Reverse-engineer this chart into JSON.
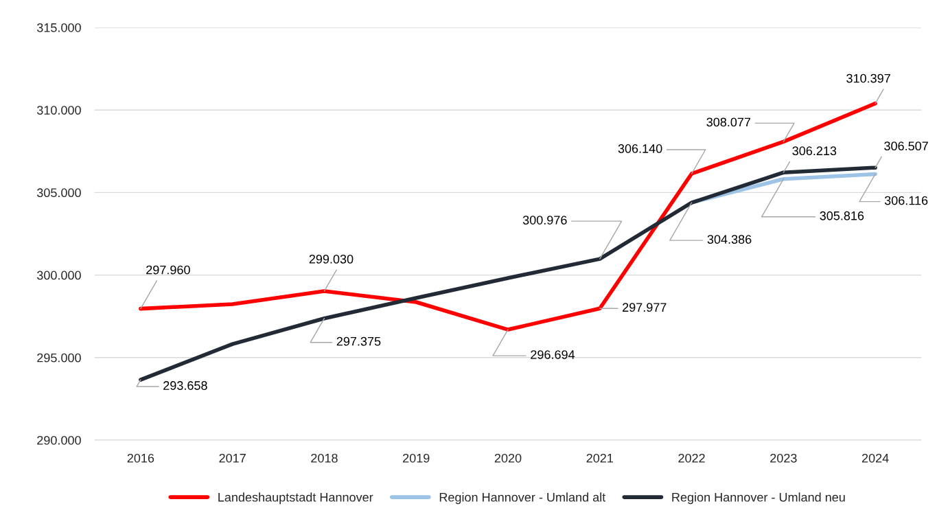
{
  "chart_data": {
    "type": "line",
    "categories": [
      "2016",
      "2017",
      "2018",
      "2019",
      "2020",
      "2021",
      "2022",
      "2023",
      "2024"
    ],
    "series": [
      {
        "name": "Landeshauptstadt Hannover",
        "color": "#ff0000",
        "values": [
          297960,
          298240,
          299030,
          298360,
          296694,
          297977,
          306140,
          308077,
          310397
        ],
        "value_labels": [
          "297.960",
          null,
          "299.030",
          null,
          "296.694",
          "297.977",
          "306.140",
          "308.077",
          "310.397"
        ]
      },
      {
        "name": "Region Hannover - Umland alt",
        "color": "#9dc3e6",
        "values": [
          null,
          null,
          null,
          null,
          null,
          null,
          304386,
          305816,
          306116
        ],
        "value_labels": [
          null,
          null,
          null,
          null,
          null,
          null,
          null,
          "305.816",
          "306.116"
        ]
      },
      {
        "name": "Region Hannover - Umland neu",
        "color": "#222a35",
        "values": [
          293658,
          295820,
          297375,
          298610,
          299820,
          300976,
          304386,
          306213,
          306507
        ],
        "value_labels": [
          "293.658",
          null,
          "297.375",
          null,
          null,
          "300.976",
          "304.386",
          "306.213",
          "306.507"
        ]
      }
    ],
    "ylim": [
      290000,
      315000
    ],
    "yticks": [
      {
        "value": 290000,
        "label": "290.000"
      },
      {
        "value": 295000,
        "label": "295.000"
      },
      {
        "value": 300000,
        "label": "300.000"
      },
      {
        "value": 305000,
        "label": "305.000"
      },
      {
        "value": 310000,
        "label": "310.000"
      },
      {
        "value": 315000,
        "label": "315.000"
      }
    ],
    "grid": "y",
    "legend": "bottom",
    "marker": "none",
    "line_style": "solid"
  }
}
